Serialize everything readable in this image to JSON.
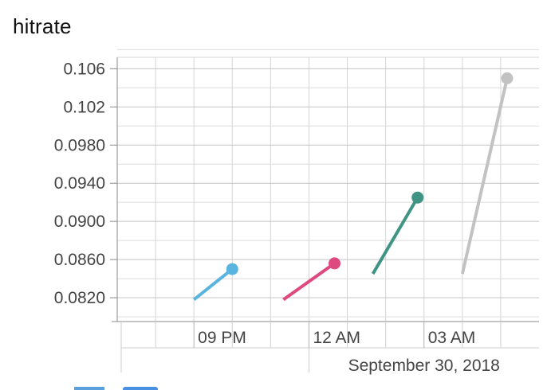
{
  "chart_data": {
    "type": "line",
    "title": "hitrate",
    "xlabel": "",
    "ylabel": "",
    "x_date_label": "September 30, 2018",
    "x_ticks": [
      "09 PM",
      "12 AM",
      "03 AM"
    ],
    "y_ticks": [
      "0.106",
      "0.102",
      "0.0980",
      "0.0940",
      "0.0900",
      "0.0860",
      "0.0820"
    ],
    "ylim": [
      0.0795,
      0.1072
    ],
    "grid": true,
    "series": [
      {
        "color": "#5ab4e0",
        "points": [
          {
            "x": "2018-09-29 21:00",
            "y": 0.0818
          },
          {
            "x": "2018-09-29 22:00",
            "y": 0.085
          }
        ]
      },
      {
        "color": "#de4a7f",
        "points": [
          {
            "x": "2018-09-29 23:20",
            "y": 0.0818
          },
          {
            "x": "2018-09-30 00:40",
            "y": 0.0856
          }
        ]
      },
      {
        "color": "#3f9484",
        "points": [
          {
            "x": "2018-09-30 01:40",
            "y": 0.0845
          },
          {
            "x": "2018-09-30 02:50",
            "y": 0.0925
          }
        ]
      },
      {
        "color": "#c2c2c2",
        "points": [
          {
            "x": "2018-09-30 04:00",
            "y": 0.0845
          },
          {
            "x": "2018-09-30 05:10",
            "y": 0.105
          }
        ]
      }
    ]
  },
  "legend": {
    "colors": [
      "#5aa0dc",
      "#4a90e2"
    ]
  }
}
